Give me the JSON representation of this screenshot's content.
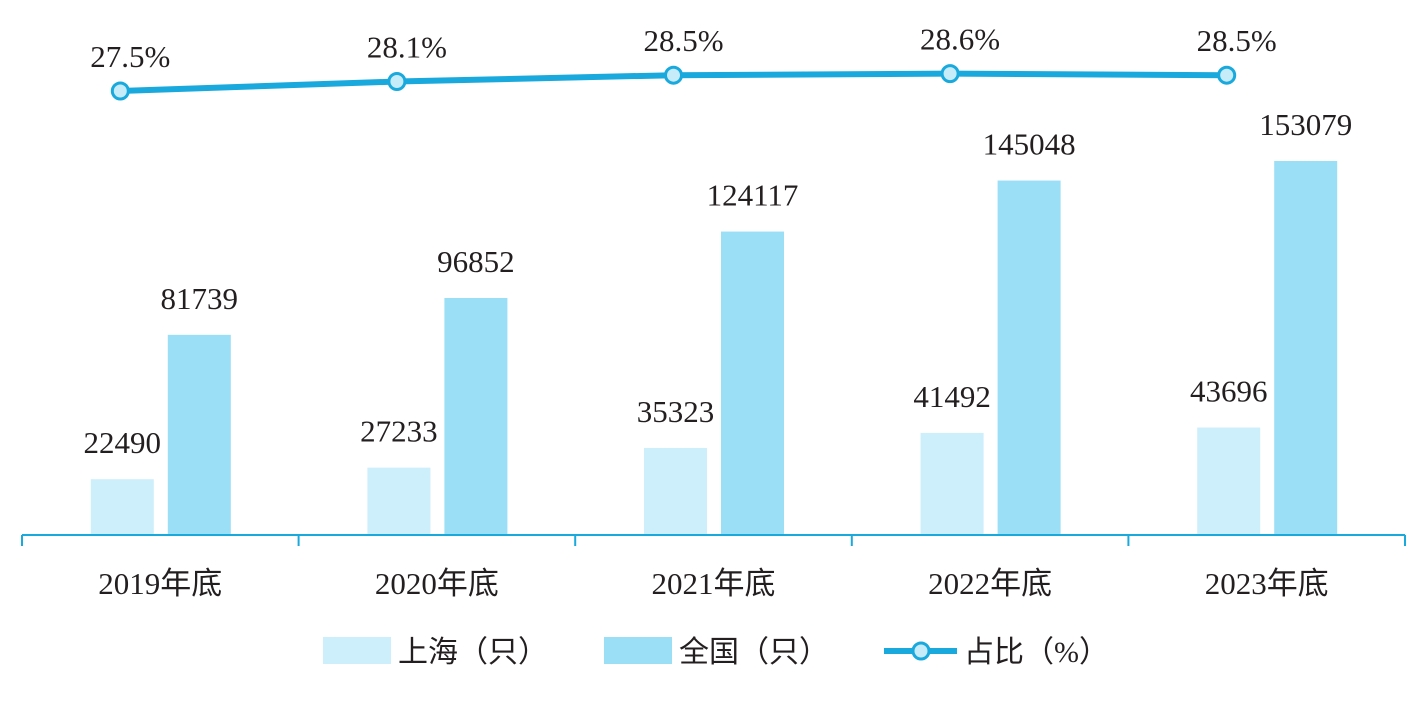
{
  "chart_data": {
    "type": "bar",
    "categories": [
      "2019年底",
      "2020年底",
      "2021年底",
      "2022年底",
      "2023年底"
    ],
    "series": [
      {
        "name": "上海（只）",
        "values": [
          22490,
          27233,
          35323,
          41492,
          43696
        ],
        "color": "#cdeffb"
      },
      {
        "name": "全国（只）",
        "values": [
          81739,
          96852,
          124117,
          145048,
          153079
        ],
        "color": "#9bdff7"
      }
    ],
    "line_series": {
      "name": "占比（%）",
      "values": [
        27.5,
        28.1,
        28.5,
        28.6,
        28.5
      ],
      "labels": [
        "27.5%",
        "28.1%",
        "28.5%",
        "28.6%",
        "28.5%"
      ],
      "color": "#1aa9dd",
      "marker_fill": "#c6ecf9"
    },
    "ylim": [
      0,
      160000
    ],
    "line_ylim": [
      20,
      30
    ],
    "grid": false,
    "legend_position": "bottom",
    "axis_color": "#1aa9dd"
  }
}
